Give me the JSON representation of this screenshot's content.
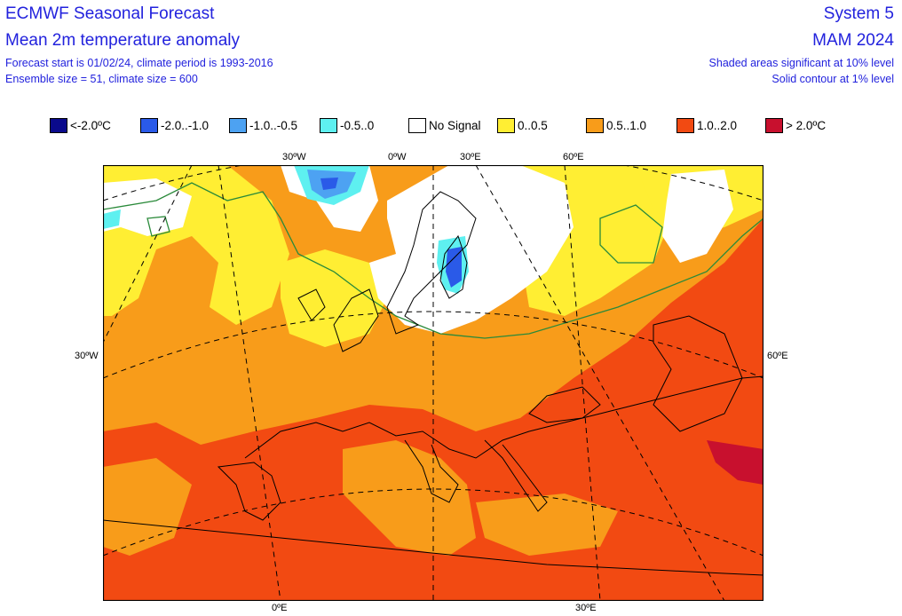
{
  "header": {
    "title": "ECMWF Seasonal Forecast",
    "subtitle": "Mean 2m temperature anomaly",
    "forecast_info": "Forecast start is 01/02/24, climate period is 1993-2016",
    "ensemble_info": "Ensemble size = 51, climate size = 600",
    "system": "System 5",
    "period": "MAM 2024",
    "significance_note": "Shaded areas significant at 10% level",
    "contour_note": "Solid contour at 1% level"
  },
  "legend": [
    {
      "label": "<-2.0ºC",
      "color": "#0a0a8c"
    },
    {
      "label": "-2.0..-1.0",
      "color": "#2a5ae8"
    },
    {
      "label": "-1.0..-0.5",
      "color": "#4da2f2"
    },
    {
      "label": "-0.5..0",
      "color": "#5ef0f0"
    },
    {
      "label": "No Signal",
      "color": "#ffffff"
    },
    {
      "label": "0..0.5",
      "color": "#ffee33"
    },
    {
      "label": "0.5..1.0",
      "color": "#f89c1a"
    },
    {
      "label": "1.0..2.0",
      "color": "#f24a12"
    },
    {
      "label": "> 2.0ºC",
      "color": "#c8102e"
    }
  ],
  "map": {
    "top_labels": [
      "30ºW",
      "0ºW",
      "30ºE",
      "60ºE"
    ],
    "left_label": "30ºW",
    "right_label": "60ºE",
    "bottom_labels": [
      "0ºE",
      "30ºE"
    ],
    "colors": {
      "no_signal": "#ffffff",
      "weak_warm": "#ffee33",
      "moderate_warm": "#f89c1a",
      "strong_warm": "#f24a12",
      "very_strong_warm": "#c8102e",
      "weak_cold": "#5ef0f0",
      "moderate_cold": "#4da2f2",
      "strong_cold": "#2a5ae8",
      "contour": "#2a8a3a"
    }
  }
}
